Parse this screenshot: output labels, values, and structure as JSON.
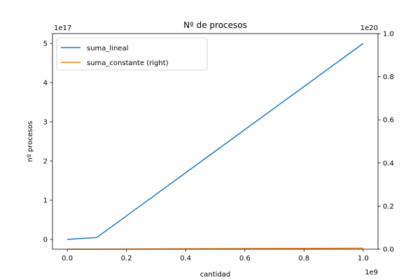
{
  "chart_data": {
    "type": "line",
    "title": "Nº de procesos",
    "xlabel": "cantidad",
    "ylabel": "nº procesos",
    "x_offset_label": "1e9",
    "y_left_offset_label": "1e17",
    "y_right_offset_label": "1e20",
    "xlim": [
      -0.05,
      1.05
    ],
    "ylim_left": [
      -0.25,
      5.25
    ],
    "ylim_right": [
      0,
      1.0
    ],
    "x_ticks": [
      0.0,
      0.2,
      0.4,
      0.6,
      0.8,
      1.0
    ],
    "x_tick_labels": [
      "0.0",
      "0.2",
      "0.4",
      "0.6",
      "0.8",
      "1.0"
    ],
    "y_left_ticks": [
      0,
      1,
      2,
      3,
      4,
      5
    ],
    "y_left_tick_labels": [
      "0",
      "1",
      "2",
      "3",
      "4",
      "5"
    ],
    "y_right_ticks": [
      0.0,
      0.2,
      0.4,
      0.6,
      0.8,
      1.0
    ],
    "y_right_tick_labels": [
      "0.0",
      "0.2",
      "0.4",
      "0.6",
      "0.8",
      "1.0"
    ],
    "grid": false,
    "legend_position": "upper-left",
    "series": [
      {
        "name": "suma_lineal",
        "axis": "left",
        "color": "#1f77b4",
        "x": [
          0.0,
          0.1,
          1.0
        ],
        "y": [
          0.0,
          0.05,
          5.0
        ]
      },
      {
        "name": "suma_constante (right)",
        "axis": "right",
        "color": "#ff7f0e",
        "x": [
          0.0,
          0.1,
          1.0
        ],
        "y": [
          0.0,
          0.0,
          0.005
        ]
      }
    ]
  }
}
